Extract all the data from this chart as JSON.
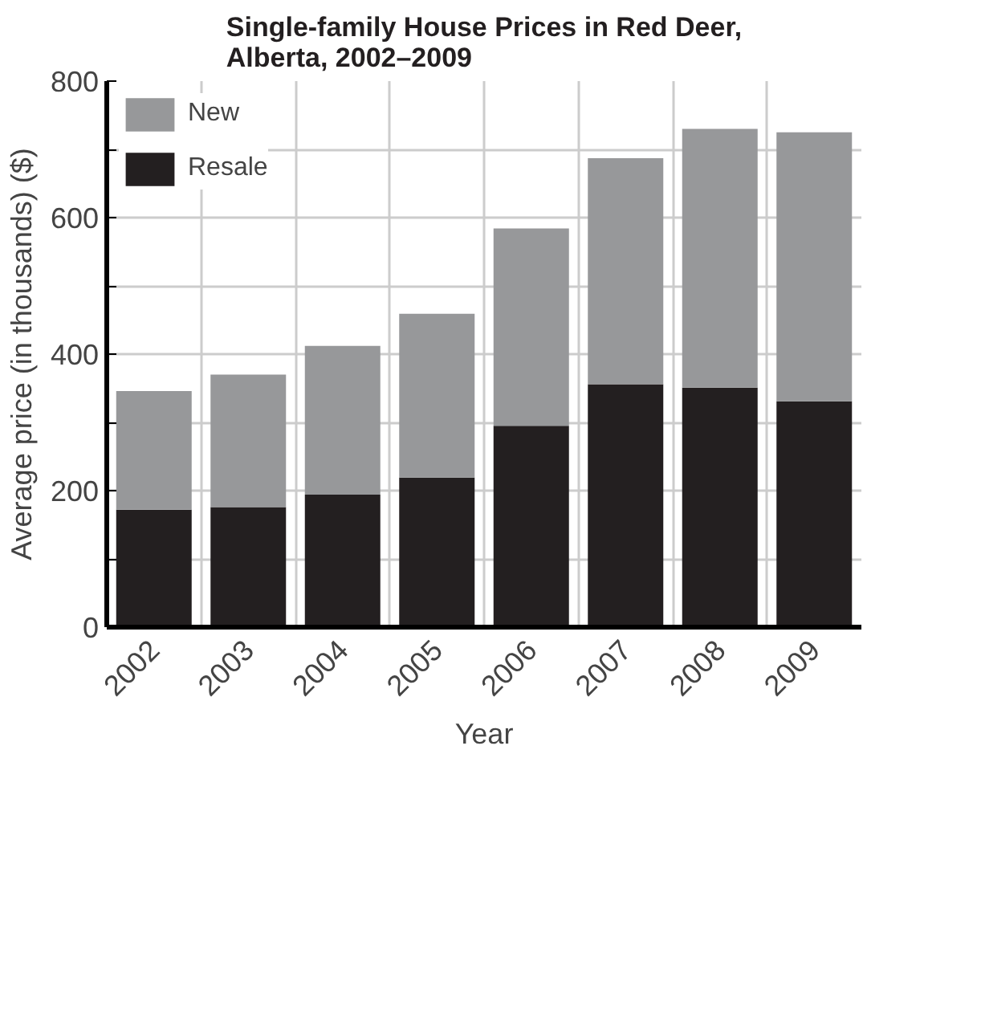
{
  "chart_data": {
    "type": "bar",
    "title": "Single-family House Prices in Red Deer, Alberta, 2002–2009",
    "xlabel": "Year",
    "ylabel": "Average price (in thousands) ($)",
    "categories": [
      "2002",
      "2003",
      "2004",
      "2005",
      "2006",
      "2007",
      "2008",
      "2009"
    ],
    "stacked": true,
    "series": [
      {
        "name": "Resale",
        "color": "#231f20",
        "values": [
          172,
          176,
          194,
          219,
          295,
          356,
          351,
          331
        ]
      },
      {
        "name": "New",
        "color": "#97989a",
        "values": [
          174,
          194,
          218,
          240,
          289,
          331,
          379,
          394
        ]
      }
    ],
    "ylim": [
      0,
      800
    ],
    "yticks": [
      0,
      {
        "value": 100,
        "label": null
      },
      200,
      {
        "value": 300,
        "label": null
      },
      400,
      {
        "value": 500,
        "label": null
      },
      600,
      {
        "value": 700,
        "label": null
      },
      800
    ],
    "grid": true,
    "legend": "top left"
  }
}
